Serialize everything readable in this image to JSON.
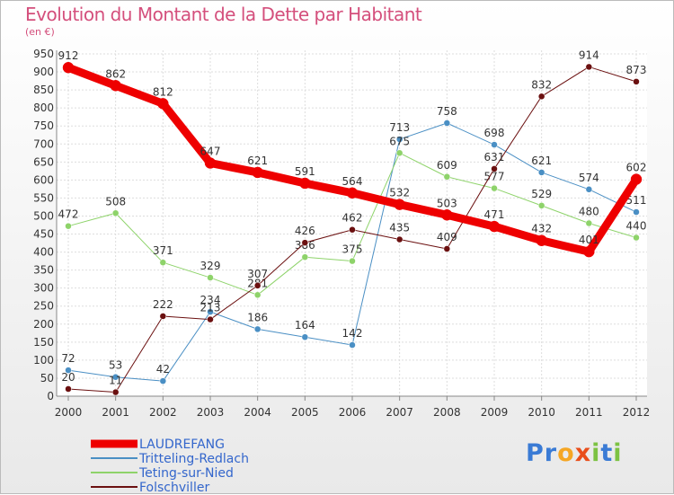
{
  "chart_data": {
    "type": "line",
    "title": "Evolution du Montant de la Dette par Habitant",
    "subtitle": "(en €)",
    "x": [
      "2000",
      "2001",
      "2002",
      "2003",
      "2004",
      "2005",
      "2006",
      "2007",
      "2008",
      "2009",
      "2010",
      "2011",
      "2012"
    ],
    "ylim": [
      0,
      950
    ],
    "yticks": [
      0,
      50,
      100,
      150,
      200,
      250,
      300,
      350,
      400,
      450,
      500,
      550,
      600,
      650,
      700,
      750,
      800,
      850,
      900,
      950
    ],
    "grid": true,
    "legend_position": "bottom-left",
    "series": [
      {
        "name": "LAUDREFANG",
        "color": "#ee0000",
        "width": 9,
        "values": [
          912,
          862,
          812,
          647,
          621,
          591,
          564,
          532,
          503,
          471,
          432,
          401,
          602
        ]
      },
      {
        "name": "Tritteling-Redlach",
        "color": "#4a8fc4",
        "width": 1,
        "values": [
          72,
          53,
          42,
          234,
          186,
          164,
          142,
          713,
          758,
          698,
          621,
          574,
          511
        ]
      },
      {
        "name": "Teting-sur-Nied",
        "color": "#8ed36a",
        "width": 1,
        "values": [
          472,
          508,
          371,
          329,
          281,
          386,
          375,
          675,
          609,
          577,
          529,
          480,
          440
        ]
      },
      {
        "name": "Folschviller",
        "color": "#6b1010",
        "width": 1,
        "values": [
          20,
          11,
          222,
          213,
          307,
          426,
          462,
          435,
          409,
          631,
          832,
          914,
          873
        ]
      }
    ]
  },
  "logo": {
    "text": "Proxiti",
    "letters": [
      "P",
      "r",
      "o",
      "x",
      "i",
      "t",
      "i"
    ],
    "colors": [
      "#3a7bd5",
      "#3a7bd5",
      "#f5a623",
      "#e94e1b",
      "#7cc242",
      "#3a7bd5",
      "#7cc242"
    ]
  }
}
